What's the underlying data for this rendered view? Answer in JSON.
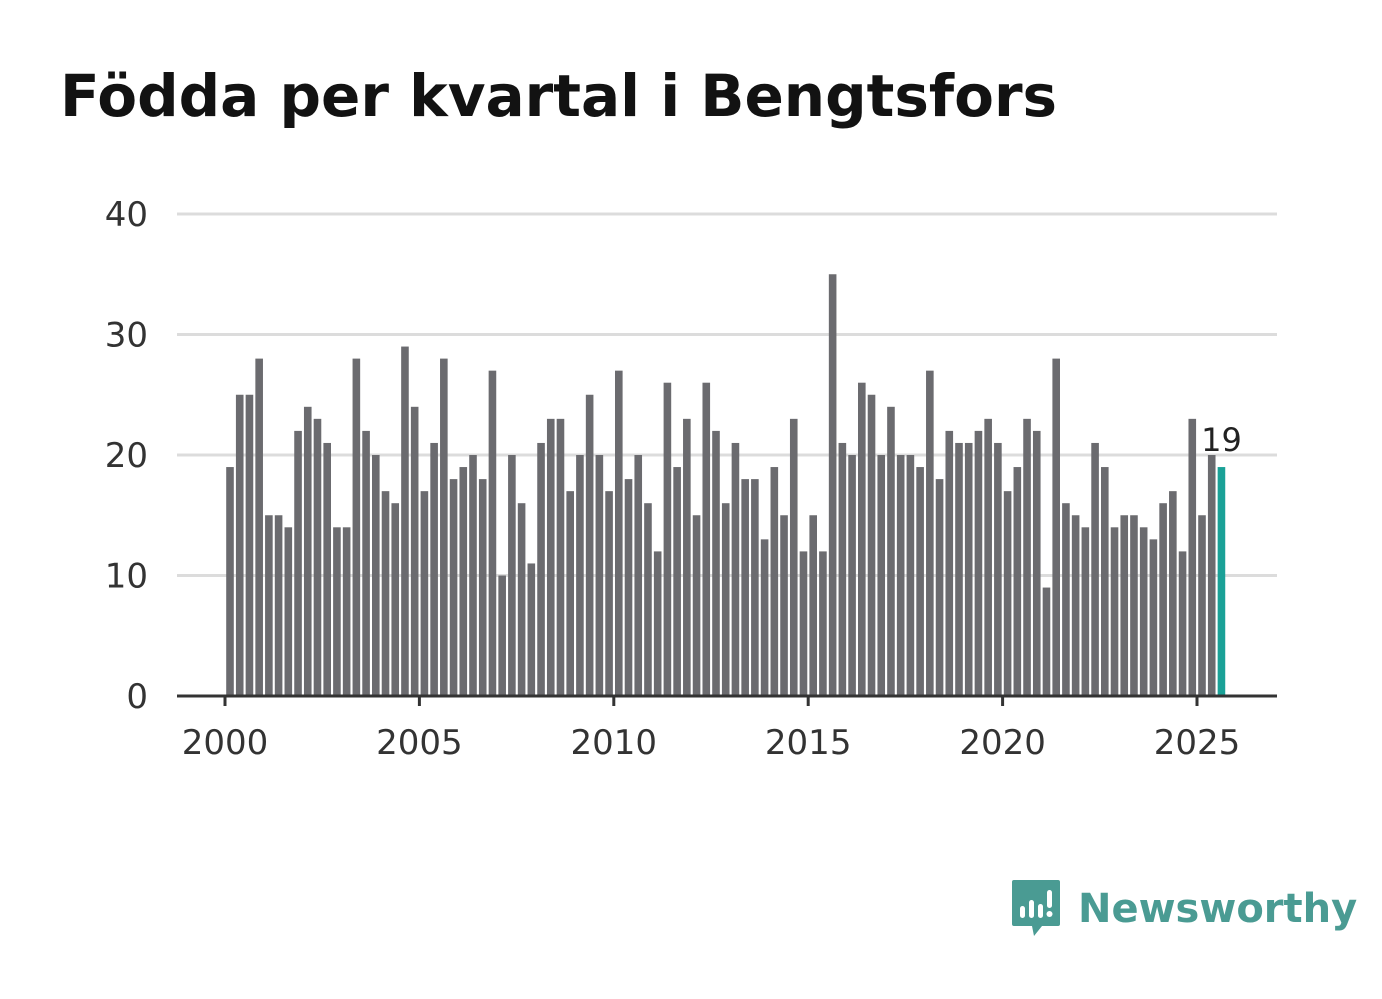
{
  "title": "Födda per kvartal i Bengtsfors",
  "brand": {
    "name": "Newsworthy"
  },
  "colors": {
    "bar": "#6b6b6f",
    "highlight": "#1aa197",
    "grid": "#dcdcdc",
    "axis": "#333333",
    "text": "#333333",
    "brand": "#4a9b93"
  },
  "chart_data": {
    "type": "bar",
    "title": "Födda per kvartal i Bengtsfors",
    "xlabel": "",
    "ylabel": "",
    "ylim": [
      0,
      40
    ],
    "yticks": [
      0,
      10,
      20,
      30,
      40
    ],
    "xticks": [
      "2000",
      "2005",
      "2010",
      "2015",
      "2020",
      "2025"
    ],
    "x_start_year": 2000,
    "grid": true,
    "highlight_last": true,
    "last_label": "19",
    "values": [
      19,
      25,
      25,
      28,
      15,
      15,
      14,
      22,
      24,
      23,
      21,
      14,
      14,
      28,
      22,
      20,
      17,
      16,
      29,
      24,
      17,
      21,
      28,
      18,
      19,
      20,
      18,
      27,
      10,
      20,
      16,
      11,
      21,
      23,
      23,
      17,
      20,
      25,
      20,
      17,
      27,
      18,
      20,
      16,
      12,
      26,
      19,
      23,
      15,
      26,
      22,
      16,
      21,
      18,
      18,
      13,
      19,
      15,
      23,
      12,
      15,
      12,
      35,
      21,
      20,
      26,
      25,
      20,
      24,
      20,
      20,
      19,
      27,
      18,
      22,
      21,
      21,
      22,
      23,
      21,
      17,
      19,
      23,
      22,
      9,
      28,
      16,
      15,
      14,
      21,
      19,
      14,
      15,
      15,
      14,
      13,
      16,
      17,
      12,
      23,
      15,
      20,
      19
    ]
  }
}
